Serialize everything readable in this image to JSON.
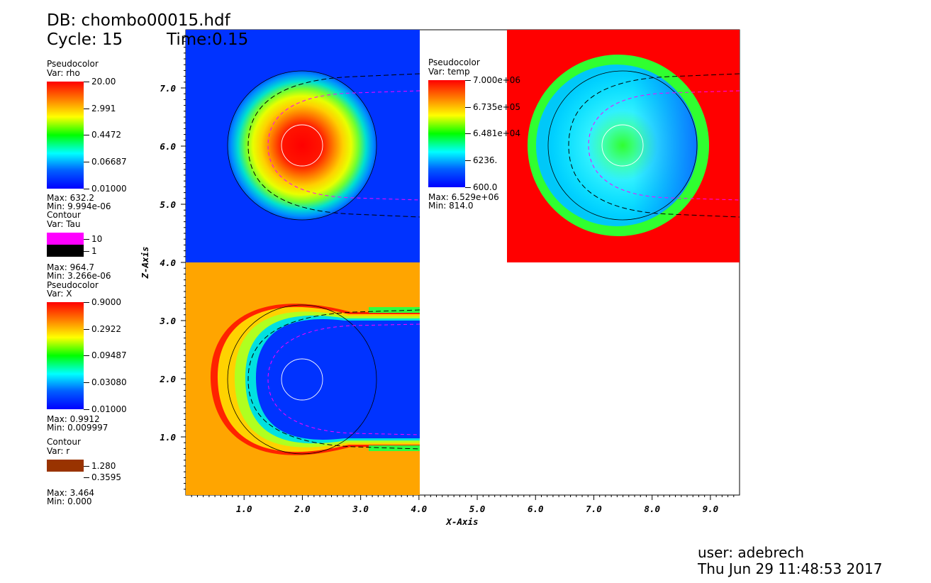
{
  "header": {
    "db": "DB: chombo00015.hdf",
    "cycle": "Cycle: 15",
    "time": "Time:0.15"
  },
  "legend_rho": {
    "kind": "Pseudocolor",
    "var": "Var: rho",
    "ticks": [
      "20.00",
      "2.991",
      "0.4472",
      "0.06687",
      "0.01000"
    ],
    "max": "Max: 632.2",
    "min": "Min: 9.994e-06"
  },
  "legend_tau": {
    "kind": "Contour",
    "var": "Var: Tau",
    "levels": [
      "10",
      "1"
    ],
    "colors": [
      "#ff00ff",
      "#000000"
    ],
    "max": "Max: 964.7",
    "min": "Min: 3.266e-06"
  },
  "legend_x": {
    "kind": "Pseudocolor",
    "var": "Var: X",
    "ticks": [
      "0.9000",
      "0.2922",
      "0.09487",
      "0.03080",
      "0.01000"
    ],
    "max": "Max: 0.9912",
    "min": "Min: 0.009997"
  },
  "legend_r": {
    "kind": "Contour",
    "var": "Var: r",
    "levels": [
      "1.280",
      "0.3595"
    ],
    "color": "#993300",
    "max": "Max: 3.464",
    "min": "Min: 0.000"
  },
  "legend_temp": {
    "kind": "Pseudocolor",
    "var": "Var: temp",
    "ticks": [
      "7.000e+06",
      "6.735e+05",
      "6.481e+04",
      "6236.",
      "600.0"
    ],
    "max": "Max: 6.529e+06",
    "min": "Min: 814.0"
  },
  "chart_data": {
    "type": "heatmap",
    "xlabel": "X-Axis",
    "ylabel": "Z-Axis",
    "xlim": [
      0,
      9.5
    ],
    "ylim": [
      0,
      8
    ],
    "xticks": [
      "1.0",
      "2.0",
      "3.0",
      "4.0",
      "5.0",
      "6.0",
      "7.0",
      "8.0",
      "9.0"
    ],
    "yticks": [
      "1.0",
      "2.0",
      "3.0",
      "4.0",
      "5.0",
      "6.0",
      "7.0"
    ],
    "xtick_values": [
      1,
      2,
      3,
      4,
      5,
      6,
      7,
      8,
      9
    ],
    "ytick_values": [
      1,
      2,
      3,
      4,
      5,
      6,
      7
    ],
    "panels": [
      {
        "var": "rho",
        "xrange": [
          0,
          4
        ],
        "zrange": [
          4,
          8
        ],
        "center": [
          2,
          6
        ],
        "background": "#0033ff"
      },
      {
        "var": "X",
        "xrange": [
          0,
          4
        ],
        "zrange": [
          0,
          4
        ],
        "center": [
          2,
          2
        ],
        "background": "#ffa500"
      },
      {
        "var": "temp",
        "xrange": [
          5.5,
          9.5
        ],
        "zrange": [
          4,
          8
        ],
        "center": [
          7.5,
          6
        ],
        "background": "#ff0000"
      }
    ],
    "contours": {
      "r_levels": [
        1.28,
        0.3595
      ],
      "tau_levels": [
        10,
        1
      ]
    },
    "grid": false
  },
  "footer": {
    "user": "user: adebrech",
    "date": "Thu Jun 29 11:48:53 2017"
  }
}
